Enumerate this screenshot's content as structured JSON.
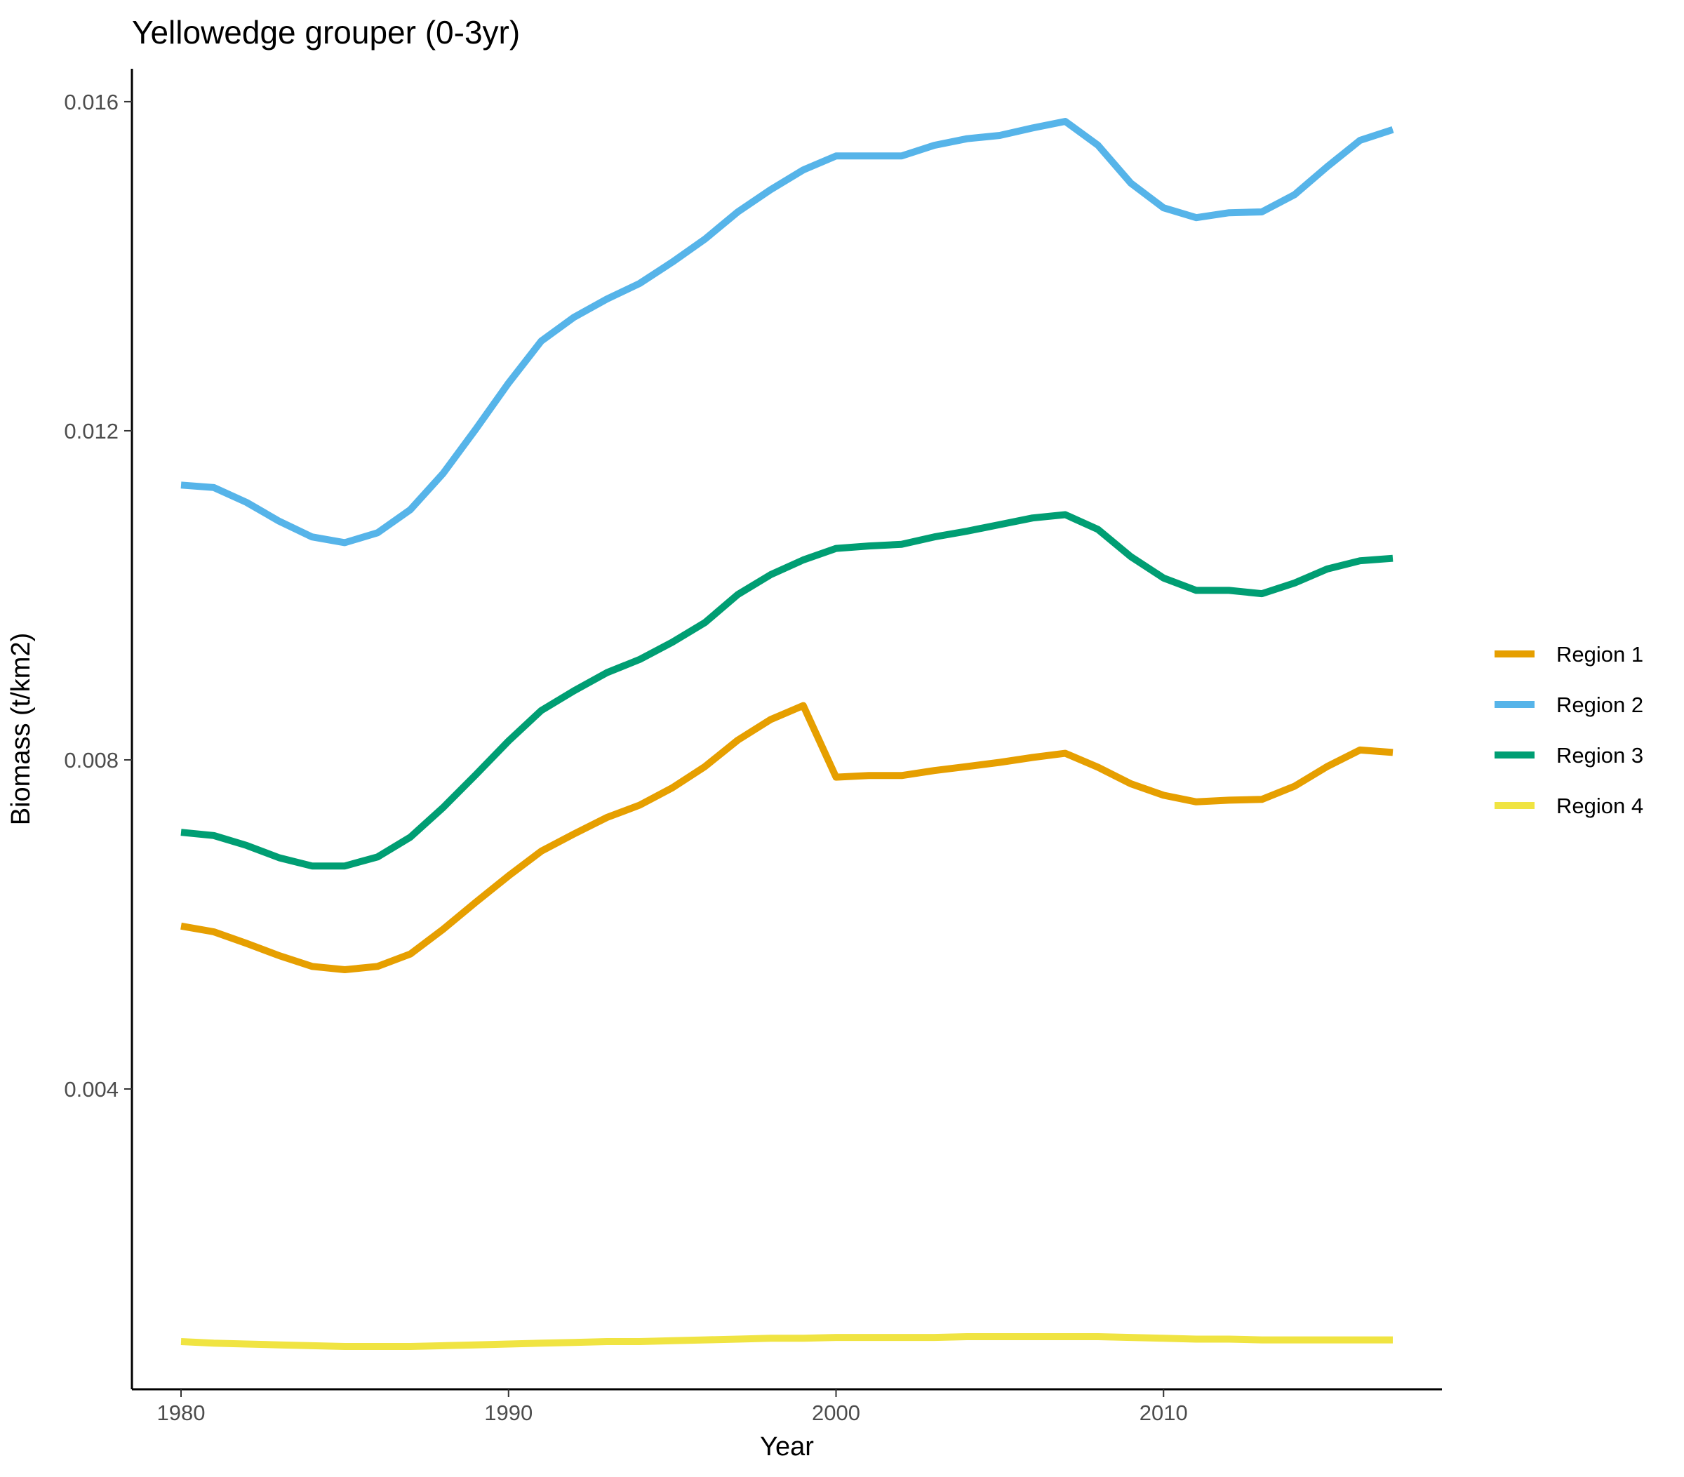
{
  "chart_data": {
    "type": "line",
    "title": "Yellowedge grouper (0-3yr)",
    "xlabel": "Year",
    "ylabel": "Biomass (t/km2)",
    "xlim": [
      1978.5,
      2018.5
    ],
    "ylim": [
      0.00035,
      0.0164
    ],
    "x_ticks": [
      1980,
      1990,
      2000,
      2010
    ],
    "x_tick_labels": [
      "1980",
      "1990",
      "2000",
      "2010"
    ],
    "y_ticks": [
      0.004,
      0.008,
      0.012,
      0.016
    ],
    "y_tick_labels": [
      "0.004",
      "0.008",
      "0.012",
      "0.016"
    ],
    "grid": false,
    "legend_position": "right",
    "x": [
      1980,
      1981,
      1982,
      1983,
      1984,
      1985,
      1986,
      1987,
      1988,
      1989,
      1990,
      1991,
      1992,
      1993,
      1994,
      1995,
      1996,
      1997,
      1998,
      1999,
      2000,
      2001,
      2002,
      2003,
      2004,
      2005,
      2006,
      2007,
      2008,
      2009,
      2010,
      2011,
      2012,
      2013,
      2014,
      2015,
      2016,
      2017
    ],
    "series": [
      {
        "name": "Region 1",
        "color": "#E69F00",
        "values": [
          0.00598,
          0.00591,
          0.00577,
          0.00562,
          0.00549,
          0.00545,
          0.00549,
          0.00564,
          0.00594,
          0.00627,
          0.00659,
          0.00689,
          0.0071,
          0.0073,
          0.00745,
          0.00766,
          0.00792,
          0.00824,
          0.00849,
          0.00866,
          0.00779,
          0.00781,
          0.00781,
          0.00787,
          0.00792,
          0.00797,
          0.00803,
          0.00808,
          0.00791,
          0.00771,
          0.00757,
          0.00749,
          0.00751,
          0.00752,
          0.00768,
          0.00792,
          0.00812,
          0.00809
        ]
      },
      {
        "name": "Region 2",
        "color": "#56B4E9",
        "values": [
          0.01134,
          0.01131,
          0.01113,
          0.0109,
          0.01071,
          0.01064,
          0.01076,
          0.01104,
          0.01148,
          0.01202,
          0.01258,
          0.01309,
          0.01338,
          0.0136,
          0.01379,
          0.01405,
          0.01433,
          0.01466,
          0.01493,
          0.01517,
          0.01534,
          0.01534,
          0.01534,
          0.01547,
          0.01555,
          0.01559,
          0.01568,
          0.01576,
          0.01547,
          0.01501,
          0.01471,
          0.01459,
          0.01465,
          0.01466,
          0.01487,
          0.01521,
          0.01553,
          0.01566
        ]
      },
      {
        "name": "Region 3",
        "color": "#009E73",
        "values": [
          0.00712,
          0.00708,
          0.00696,
          0.00681,
          0.00671,
          0.00671,
          0.00682,
          0.00706,
          0.00742,
          0.00782,
          0.00823,
          0.0086,
          0.00884,
          0.00906,
          0.00922,
          0.00943,
          0.00967,
          0.01001,
          0.01025,
          0.01043,
          0.01057,
          0.0106,
          0.01062,
          0.01071,
          0.01078,
          0.01086,
          0.01094,
          0.01098,
          0.0108,
          0.01047,
          0.01021,
          0.01006,
          0.01006,
          0.01002,
          0.01015,
          0.01032,
          0.01042,
          0.01045
        ]
      },
      {
        "name": "Region 4",
        "color": "#F0E442",
        "values": [
          0.00093,
          0.00091,
          0.0009,
          0.00089,
          0.00088,
          0.00087,
          0.00087,
          0.00087,
          0.00088,
          0.00089,
          0.0009,
          0.00091,
          0.00092,
          0.00093,
          0.00093,
          0.00094,
          0.00095,
          0.00096,
          0.00097,
          0.00097,
          0.00098,
          0.00098,
          0.00098,
          0.00098,
          0.00099,
          0.00099,
          0.00099,
          0.00099,
          0.00099,
          0.00098,
          0.00097,
          0.00096,
          0.00096,
          0.00095,
          0.00095,
          0.00095,
          0.00095,
          0.00095
        ]
      }
    ]
  }
}
